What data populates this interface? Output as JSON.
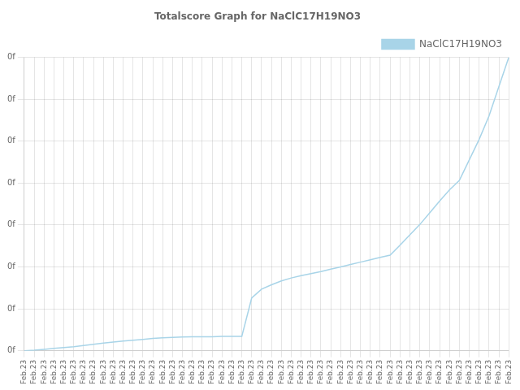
{
  "chart_data": {
    "type": "line",
    "title": "Totalscore Graph for NaClC17H19NO3",
    "categories": [
      "Feb.23",
      "Feb.23",
      "Feb.23",
      "Feb.23",
      "Feb.23",
      "Feb.23",
      "Feb.23",
      "Feb.23",
      "Feb.23",
      "Feb.23",
      "Feb.23",
      "Feb.23",
      "Feb.23",
      "Feb.23",
      "Feb.23",
      "Feb.23",
      "Feb.23",
      "Feb.23",
      "Feb.23",
      "Feb.23",
      "Feb.23",
      "Feb.23",
      "Feb.23",
      "Feb.23",
      "Feb.23",
      "Feb.23",
      "Feb.23",
      "Feb.23",
      "Feb.23",
      "Feb.23",
      "Feb.23",
      "Feb.23",
      "Feb.23",
      "Feb.23",
      "Feb.23",
      "Feb.23",
      "Feb.23",
      "Feb.23",
      "Feb.23",
      "Feb.23",
      "Feb.23",
      "Feb.23",
      "Feb.23",
      "Feb.23",
      "Feb.23",
      "Feb.23",
      "Feb.23",
      "Feb.23",
      "Feb.23",
      "Feb.23"
    ],
    "series": [
      {
        "name": "NaClC17H19NO3",
        "color": "#a8d4e8",
        "values": [
          0.0,
          0.002,
          0.005,
          0.008,
          0.011,
          0.014,
          0.018,
          0.022,
          0.026,
          0.03,
          0.033,
          0.036,
          0.039,
          0.042,
          0.044,
          0.046,
          0.047,
          0.048,
          0.048,
          0.048,
          0.049,
          0.049,
          0.049,
          0.18,
          0.21,
          0.225,
          0.238,
          0.248,
          0.256,
          0.263,
          0.27,
          0.278,
          0.286,
          0.294,
          0.302,
          0.31,
          0.318,
          0.326,
          0.36,
          0.395,
          0.43,
          0.47,
          0.51,
          0.548,
          0.58,
          0.65,
          0.72,
          0.8,
          0.9,
          1.0
        ]
      }
    ],
    "ylim": [
      0,
      1.0
    ],
    "yticks": [
      {
        "value": 0,
        "label": "0f"
      },
      {
        "value": 0.14285714285714285,
        "label": "0f"
      },
      {
        "value": 0.2857142857142857,
        "label": "0f"
      },
      {
        "value": 0.42857142857142855,
        "label": "0f"
      },
      {
        "value": 0.5714285714285714,
        "label": "0f"
      },
      {
        "value": 0.7142857142857142,
        "label": "0f"
      },
      {
        "value": 0.8571428571428571,
        "label": "0f"
      },
      {
        "value": 1.0,
        "label": "0f"
      }
    ],
    "grid": true,
    "legend": "upper right"
  }
}
